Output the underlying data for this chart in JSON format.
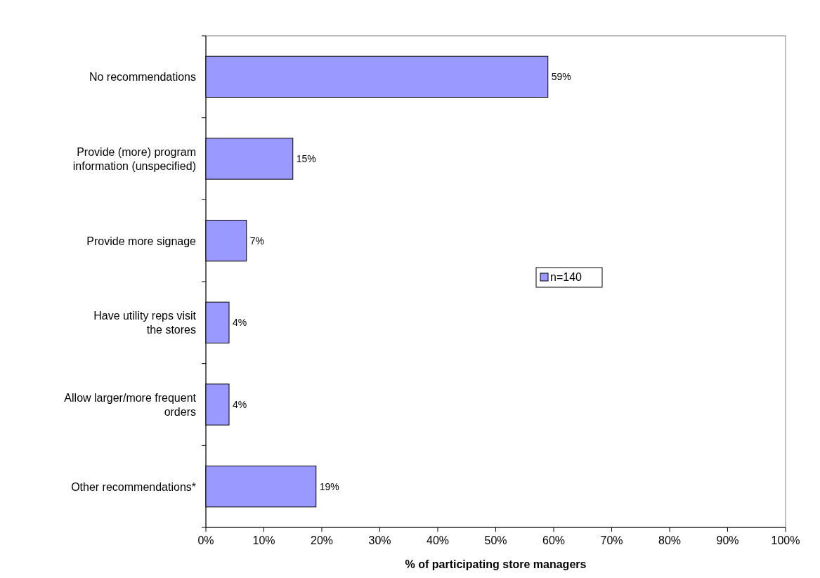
{
  "chart_data": {
    "type": "bar",
    "orientation": "horizontal",
    "xlabel": "% of participating store managers",
    "categories": [
      "No recommendations",
      "Provide (more) program information (unspecified)",
      "Provide more signage",
      "Have utility reps visit the stores",
      "Allow larger/more frequent orders",
      "Other recommendations*"
    ],
    "series": [
      {
        "name": "n=140",
        "color": "#9999ff",
        "values": [
          59,
          15,
          7,
          4,
          4,
          19
        ],
        "value_labels": [
          "59%",
          "15%",
          "7%",
          "4%",
          "4%",
          "19%"
        ]
      }
    ],
    "xlim": [
      0,
      100
    ],
    "xticks": [
      {
        "value": 0,
        "label": "0%"
      },
      {
        "value": 10,
        "label": "10%"
      },
      {
        "value": 20,
        "label": "20%"
      },
      {
        "value": 30,
        "label": "30%"
      },
      {
        "value": 40,
        "label": "40%"
      },
      {
        "value": 50,
        "label": "50%"
      },
      {
        "value": 60,
        "label": "60%"
      },
      {
        "value": 70,
        "label": "70%"
      },
      {
        "value": 80,
        "label": "80%"
      },
      {
        "value": 90,
        "label": "90%"
      },
      {
        "value": 100,
        "label": "100%"
      }
    ],
    "grid": false,
    "legend": "right"
  }
}
